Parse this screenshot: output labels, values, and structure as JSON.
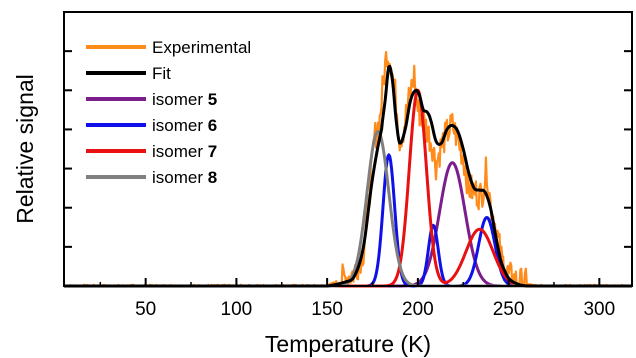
{
  "chart_data": {
    "type": "line",
    "xlabel": "Temperature (K)",
    "ylabel": "Relative signal",
    "xlim": [
      5,
      318
    ],
    "ylim": [
      0,
      1.4
    ],
    "x_ticks": [
      50,
      100,
      150,
      200,
      250,
      300
    ],
    "y_tick_labels_shown": false,
    "grid": false,
    "legend_position": "top-left",
    "series": [
      {
        "name": "Experimental",
        "label_text": "Experimental",
        "label_bold": "",
        "color": "#FF8C1A",
        "style": "noisy",
        "values": [
          [
            5,
            0.0
          ],
          [
            150,
            0.0
          ],
          [
            160,
            0.04
          ],
          [
            165,
            0.07
          ],
          [
            170,
            0.18
          ],
          [
            173,
            0.45
          ],
          [
            176,
            0.75
          ],
          [
            179,
            0.85
          ],
          [
            181,
            1.05
          ],
          [
            183,
            1.2
          ],
          [
            185,
            1.15
          ],
          [
            188,
            0.95
          ],
          [
            190,
            0.75
          ],
          [
            192,
            0.8
          ],
          [
            195,
            0.95
          ],
          [
            198,
            1.08
          ],
          [
            200,
            0.9
          ],
          [
            203,
            0.85
          ],
          [
            205,
            0.8
          ],
          [
            208,
            0.72
          ],
          [
            210,
            0.62
          ],
          [
            213,
            0.72
          ],
          [
            216,
            0.78
          ],
          [
            219,
            0.82
          ],
          [
            222,
            0.75
          ],
          [
            225,
            0.66
          ],
          [
            228,
            0.5
          ],
          [
            232,
            0.48
          ],
          [
            235,
            0.46
          ],
          [
            238,
            0.6
          ],
          [
            240,
            0.42
          ],
          [
            243,
            0.3
          ],
          [
            246,
            0.14
          ],
          [
            250,
            0.05
          ],
          [
            255,
            0.02
          ],
          [
            265,
            0.0
          ],
          [
            318,
            0.0
          ]
        ]
      },
      {
        "name": "Fit",
        "label_text": "Fit",
        "label_bold": "",
        "color": "#000000",
        "style": "smooth",
        "values": [
          [
            5,
            0.0
          ],
          [
            150,
            0.0
          ],
          [
            160,
            0.02
          ],
          [
            165,
            0.05
          ],
          [
            170,
            0.2
          ],
          [
            175,
            0.55
          ],
          [
            180,
            0.8
          ],
          [
            182,
            0.95
          ],
          [
            184,
            1.12
          ],
          [
            186,
            1.05
          ],
          [
            188,
            0.85
          ],
          [
            190,
            0.73
          ],
          [
            193,
            0.8
          ],
          [
            196,
            0.95
          ],
          [
            199,
            1.0
          ],
          [
            201,
            0.97
          ],
          [
            203,
            0.9
          ],
          [
            205,
            0.89
          ],
          [
            207,
            0.85
          ],
          [
            210,
            0.74
          ],
          [
            213,
            0.73
          ],
          [
            216,
            0.8
          ],
          [
            219,
            0.82
          ],
          [
            222,
            0.79
          ],
          [
            225,
            0.7
          ],
          [
            228,
            0.58
          ],
          [
            231,
            0.5
          ],
          [
            234,
            0.49
          ],
          [
            237,
            0.48
          ],
          [
            240,
            0.4
          ],
          [
            243,
            0.25
          ],
          [
            246,
            0.12
          ],
          [
            250,
            0.04
          ],
          [
            255,
            0.01
          ],
          [
            260,
            0.0
          ],
          [
            318,
            0.0
          ]
        ]
      },
      {
        "name": "isomer 5",
        "label_text": "isomer ",
        "label_bold": "5",
        "color": "#7B1E8C",
        "style": "gauss",
        "gauss": {
          "center": 219,
          "amp": 0.63,
          "sigma": 7.0
        }
      },
      {
        "name": "isomer 6",
        "label_text": "isomer ",
        "label_bold": "6",
        "color": "#1010E8",
        "style": "gauss_multi",
        "gauss_list": [
          {
            "center": 184,
            "amp": 0.67,
            "sigma": 3.2
          },
          {
            "center": 208.5,
            "amp": 0.31,
            "sigma": 2.7
          },
          {
            "center": 238,
            "amp": 0.35,
            "sigma": 4.5
          }
        ]
      },
      {
        "name": "isomer 7",
        "label_text": "isomer ",
        "label_bold": "7",
        "color": "#E81010",
        "style": "gauss_multi",
        "gauss_list": [
          {
            "center": 200,
            "amp": 1.0,
            "sigma": 4.7
          },
          {
            "center": 234,
            "amp": 0.29,
            "sigma": 7.5
          }
        ]
      },
      {
        "name": "isomer 8",
        "label_text": "isomer ",
        "label_bold": "8",
        "color": "#808080",
        "style": "gauss",
        "gauss": {
          "center": 178,
          "amp": 0.79,
          "sigma": 6.0
        }
      }
    ]
  }
}
